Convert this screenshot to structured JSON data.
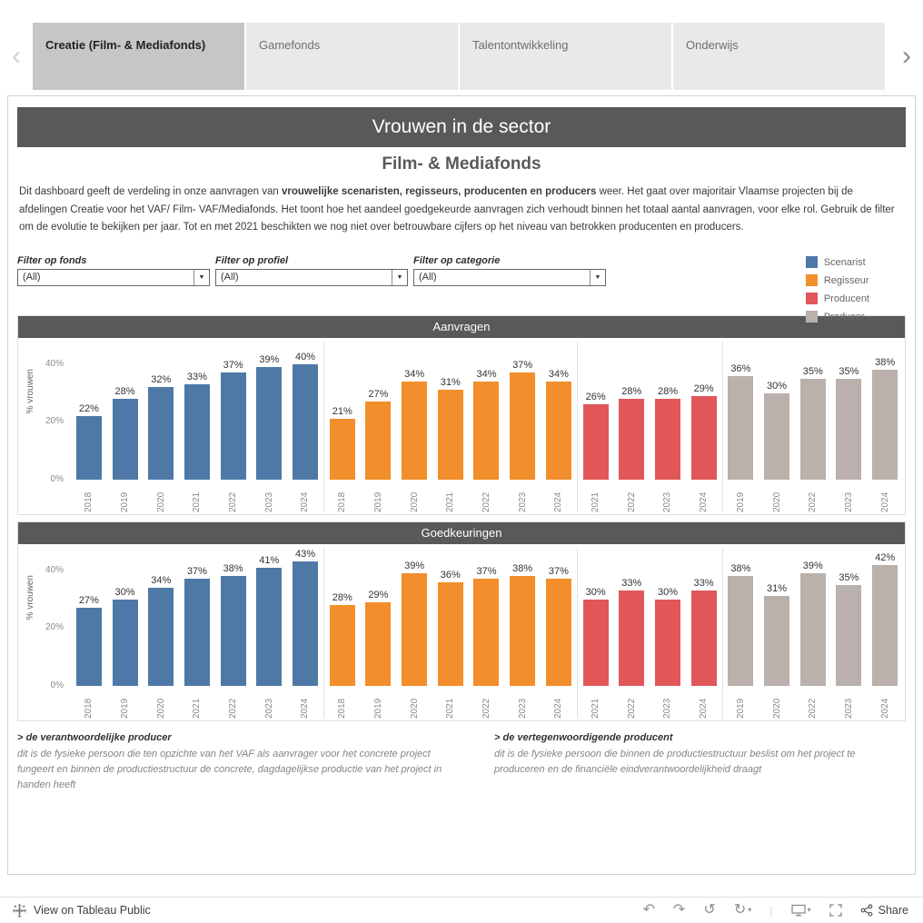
{
  "tabs": {
    "items": [
      {
        "label": "Creatie (Film- & Mediafonds)",
        "active": true
      },
      {
        "label": "Gamefonds",
        "active": false
      },
      {
        "label": "Talentontwikkeling",
        "active": false
      },
      {
        "label": "Onderwijs",
        "active": false
      }
    ]
  },
  "header": {
    "title": "Vrouwen in de sector",
    "subtitle": "Film- & Mediafonds"
  },
  "description": {
    "pre": "Dit dashboard geeft de verdeling in onze aanvragen van ",
    "bold": "vrouwelijke scenaristen, regisseurs, producenten en producers",
    "post": "  weer. Het gaat over majoritair Vlaamse projecten bij de afdelingen Creatie voor het VAF/ Film- VAF/Mediafonds. Het toont hoe het aandeel goedgekeurde aanvragen  zich verhoudt binnen het totaal aantal aanvragen, voor elke rol. Gebruik de filter om de evolutie te bekijken per jaar. Tot en met 2021 beschikten we nog niet over betrouwbare cijfers op het niveau van betrokken producenten en producers."
  },
  "filters": [
    {
      "label": "Filter op fonds",
      "value": "(All)"
    },
    {
      "label": "Filter op profiel",
      "value": "(All)"
    },
    {
      "label": "Filter op categorie",
      "value": "(All)"
    }
  ],
  "legend": {
    "items": [
      {
        "label": "Scenarist",
        "color": "#4e79a7"
      },
      {
        "label": "Regisseur",
        "color": "#f28e2b"
      },
      {
        "label": "Producent",
        "color": "#e15759"
      },
      {
        "label": "Producer",
        "color": "#bab0ac"
      }
    ]
  },
  "chart_data": [
    {
      "type": "bar",
      "title": "Aanvragen",
      "ylabel": "% vrouwen",
      "yticks": [
        40,
        20,
        0
      ],
      "ylim": [
        0,
        48
      ],
      "series": [
        {
          "name": "Scenarist",
          "years": [
            "2018",
            "2019",
            "2020",
            "2021",
            "2022",
            "2023",
            "2024"
          ],
          "values": [
            22,
            28,
            32,
            33,
            37,
            39,
            40
          ]
        },
        {
          "name": "Regisseur",
          "years": [
            "2018",
            "2019",
            "2020",
            "2021",
            "2022",
            "2023",
            "2024"
          ],
          "values": [
            21,
            27,
            34,
            31,
            34,
            37,
            34
          ]
        },
        {
          "name": "Producent",
          "years": [
            "2021",
            "2022",
            "2023",
            "2024"
          ],
          "values": [
            26,
            28,
            28,
            29
          ]
        },
        {
          "name": "Producer",
          "years": [
            "2019",
            "2020",
            "2022",
            "2023",
            "2024"
          ],
          "values": [
            36,
            30,
            35,
            35,
            38
          ]
        }
      ]
    },
    {
      "type": "bar",
      "title": "Goedkeuringen",
      "ylabel": "% vrouwen",
      "yticks": [
        40,
        20,
        0
      ],
      "ylim": [
        0,
        48
      ],
      "series": [
        {
          "name": "Scenarist",
          "years": [
            "2018",
            "2019",
            "2020",
            "2021",
            "2022",
            "2023",
            "2024"
          ],
          "values": [
            27,
            30,
            34,
            37,
            38,
            41,
            43
          ]
        },
        {
          "name": "Regisseur",
          "years": [
            "2018",
            "2019",
            "2020",
            "2021",
            "2022",
            "2023",
            "2024"
          ],
          "values": [
            28,
            29,
            39,
            36,
            37,
            38,
            37
          ]
        },
        {
          "name": "Producent",
          "years": [
            "2021",
            "2022",
            "2023",
            "2024"
          ],
          "values": [
            30,
            33,
            30,
            33
          ]
        },
        {
          "name": "Producer",
          "years": [
            "2019",
            "2020",
            "2022",
            "2023",
            "2024"
          ],
          "values": [
            38,
            31,
            39,
            35,
            42
          ]
        }
      ]
    }
  ],
  "footnotes": [
    {
      "title": "> de verantwoordelijke producer",
      "body": "dit is de fysieke persoon die ten opzichte van het VAF als aanvrager voor het concrete project fungeert en binnen de productiestructuur de concrete, dagdagelijkse productie van het project in handen heeft"
    },
    {
      "title": "> de vertegenwoordigende producent",
      "body": "dit is de fysieke persoon die binnen de productiestructuur beslist om het project te produceren en de financiële eindverantwoordelijkheid draagt"
    }
  ],
  "toolbar": {
    "view_label": "View on Tableau Public",
    "share_label": "Share"
  }
}
